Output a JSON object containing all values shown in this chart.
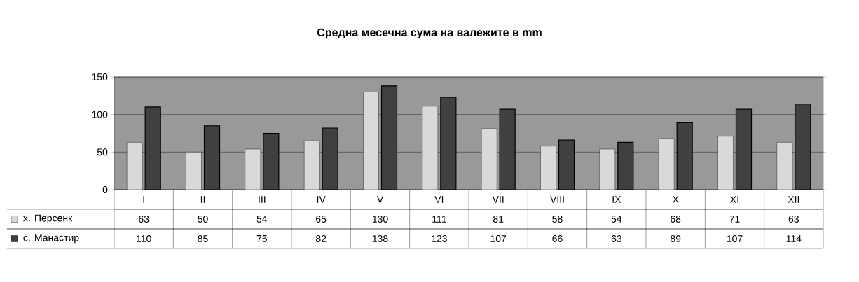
{
  "chart_data": {
    "type": "bar",
    "title": "Средна месечна  сума на валежите в mm",
    "categories": [
      "I",
      "II",
      "III",
      "IV",
      "V",
      "VI",
      "VII",
      "VIII",
      "IX",
      "X",
      "XI",
      "XII"
    ],
    "series": [
      {
        "name": "х. Персенк",
        "color": "#d9d9d9",
        "values": [
          63,
          50,
          54,
          65,
          130,
          111,
          81,
          58,
          54,
          68,
          71,
          63
        ]
      },
      {
        "name": "с. Манастир",
        "color": "#404040",
        "values": [
          110,
          85,
          75,
          82,
          138,
          123,
          107,
          66,
          63,
          89,
          107,
          114
        ]
      }
    ],
    "ylim": [
      0,
      150
    ],
    "yticks": [
      0,
      50,
      100,
      150
    ],
    "grid": "y",
    "legend": "left",
    "data_labels": true
  }
}
